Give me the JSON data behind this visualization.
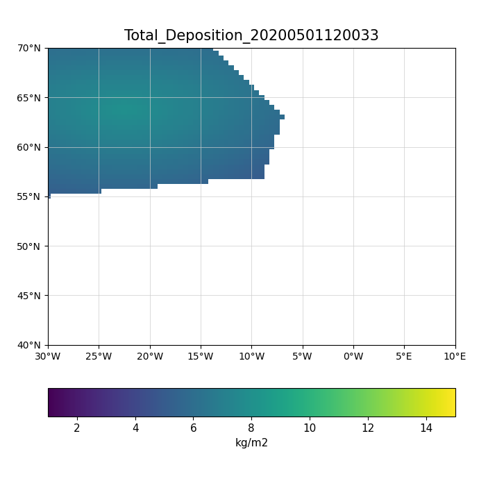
{
  "title": "Total_Deposition_20200501120033",
  "xlabel_label": "",
  "ylabel_label": "",
  "colorbar_label": "kg/m2",
  "colormap": "viridis",
  "vmin": 1.0,
  "vmax": 15.0,
  "colorbar_ticks": [
    2,
    4,
    6,
    8,
    10,
    12,
    14
  ],
  "lon_min": -30,
  "lon_max": 10,
  "lat_min": 40,
  "lat_max": 70,
  "xticks": [
    -30,
    -25,
    -20,
    -15,
    -10,
    -5,
    0,
    5,
    10
  ],
  "yticks": [
    40,
    45,
    50,
    55,
    60,
    65,
    70
  ],
  "xtick_labels": [
    "30°W",
    "25°W",
    "20°W",
    "15°W",
    "10°W",
    "5°W",
    "0°W",
    "5°E",
    "10°E"
  ],
  "ytick_labels": [
    "40°N",
    "45°N",
    "50°N",
    "55°N",
    "60°N",
    "65°N",
    "70°N"
  ],
  "background_color": "#ffffff",
  "plume_lon_min": -30,
  "plume_lon_max": -7,
  "plume_lat_min": 55,
  "plume_lat_max": 70,
  "source_lon": -22.5,
  "source_lat": 63.8,
  "grid_color": "#cccccc",
  "land_color": "#ffffff",
  "coastline_color": "#aaaaaa",
  "title_fontsize": 15,
  "tick_fontsize": 10,
  "colorbar_fontsize": 11
}
